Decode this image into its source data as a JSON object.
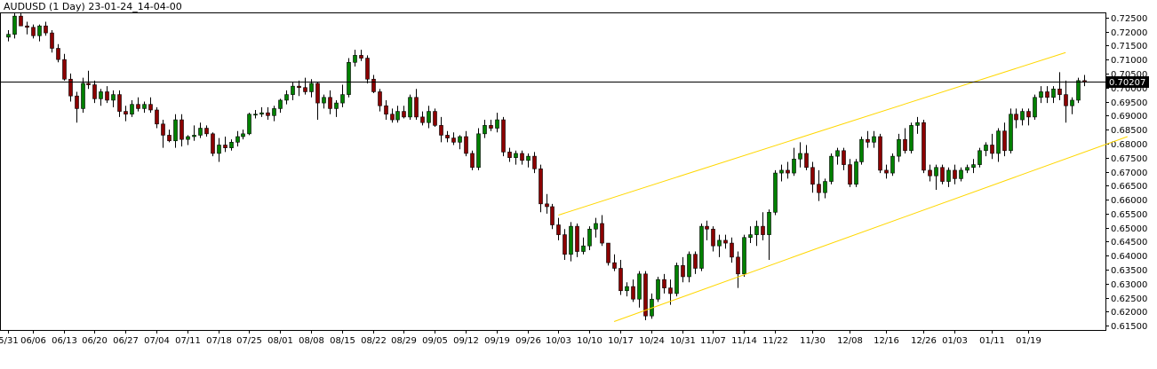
{
  "chart_data": {
    "type": "candlestick",
    "title": "AUDUSD (1 Day) 23-01-24_14-04-00",
    "current_price_label": "0.70207",
    "y_ticks": [
      "0.72500",
      "0.72000",
      "0.71500",
      "0.71000",
      "0.70500",
      "0.70000",
      "0.69500",
      "0.69000",
      "0.68500",
      "0.68000",
      "0.67500",
      "0.67000",
      "0.66500",
      "0.66000",
      "0.65500",
      "0.65000",
      "0.64500",
      "0.64000",
      "0.63500",
      "0.63000",
      "0.62500",
      "0.62000",
      "0.61500"
    ],
    "ylim": [
      0.6135,
      0.7265
    ],
    "x_ticks": [
      {
        "label": "5/31",
        "i": 0
      },
      {
        "label": "06/06",
        "i": 4
      },
      {
        "label": "06/13",
        "i": 9
      },
      {
        "label": "06/20",
        "i": 14
      },
      {
        "label": "06/27",
        "i": 19
      },
      {
        "label": "07/04",
        "i": 24
      },
      {
        "label": "07/11",
        "i": 29
      },
      {
        "label": "07/18",
        "i": 34
      },
      {
        "label": "07/25",
        "i": 39
      },
      {
        "label": "08/01",
        "i": 44
      },
      {
        "label": "08/08",
        "i": 49
      },
      {
        "label": "08/15",
        "i": 54
      },
      {
        "label": "08/22",
        "i": 59
      },
      {
        "label": "08/29",
        "i": 64
      },
      {
        "label": "09/05",
        "i": 69
      },
      {
        "label": "09/12",
        "i": 74
      },
      {
        "label": "09/19",
        "i": 79
      },
      {
        "label": "09/26",
        "i": 84
      },
      {
        "label": "10/03",
        "i": 89
      },
      {
        "label": "10/10",
        "i": 94
      },
      {
        "label": "10/17",
        "i": 99
      },
      {
        "label": "10/24",
        "i": 104
      },
      {
        "label": "10/31",
        "i": 109
      },
      {
        "label": "11/07",
        "i": 114
      },
      {
        "label": "11/14",
        "i": 119
      },
      {
        "label": "11/22",
        "i": 124
      },
      {
        "label": "11/30",
        "i": 130
      },
      {
        "label": "12/08",
        "i": 136
      },
      {
        "label": "12/16",
        "i": 142
      },
      {
        "label": "12/26",
        "i": 148
      },
      {
        "label": "01/03",
        "i": 153
      },
      {
        "label": "01/11",
        "i": 159
      },
      {
        "label": "01/19",
        "i": 165
      }
    ],
    "candles": [
      [
        0.718,
        0.7205,
        0.7165,
        0.719
      ],
      [
        0.719,
        0.727,
        0.7175,
        0.7255
      ],
      [
        0.7255,
        0.7275,
        0.7225,
        0.722
      ],
      [
        0.722,
        0.7235,
        0.719,
        0.7215
      ],
      [
        0.7215,
        0.7225,
        0.7175,
        0.7185
      ],
      [
        0.7185,
        0.7225,
        0.7165,
        0.722
      ],
      [
        0.722,
        0.7235,
        0.7185,
        0.7195
      ],
      [
        0.7195,
        0.7205,
        0.7125,
        0.714
      ],
      [
        0.714,
        0.7155,
        0.709,
        0.71
      ],
      [
        0.71,
        0.712,
        0.7025,
        0.703
      ],
      [
        0.703,
        0.705,
        0.695,
        0.697
      ],
      [
        0.697,
        0.6985,
        0.6875,
        0.6925
      ],
      [
        0.6925,
        0.7035,
        0.691,
        0.7015
      ],
      [
        0.7015,
        0.706,
        0.6995,
        0.701
      ],
      [
        0.701,
        0.7025,
        0.6945,
        0.696
      ],
      [
        0.696,
        0.6995,
        0.6935,
        0.6985
      ],
      [
        0.6985,
        0.7005,
        0.6945,
        0.6955
      ],
      [
        0.6955,
        0.699,
        0.693,
        0.6975
      ],
      [
        0.6975,
        0.699,
        0.6895,
        0.6915
      ],
      [
        0.6915,
        0.6935,
        0.688,
        0.6905
      ],
      [
        0.6905,
        0.6955,
        0.6895,
        0.694
      ],
      [
        0.694,
        0.6965,
        0.6915,
        0.6925
      ],
      [
        0.6925,
        0.695,
        0.691,
        0.694
      ],
      [
        0.694,
        0.6965,
        0.691,
        0.692
      ],
      [
        0.692,
        0.693,
        0.6855,
        0.687
      ],
      [
        0.687,
        0.6885,
        0.6785,
        0.683
      ],
      [
        0.683,
        0.685,
        0.6805,
        0.681
      ],
      [
        0.681,
        0.6905,
        0.6785,
        0.6885
      ],
      [
        0.6885,
        0.6905,
        0.679,
        0.6815
      ],
      [
        0.6815,
        0.683,
        0.6795,
        0.6825
      ],
      [
        0.6825,
        0.6865,
        0.681,
        0.683
      ],
      [
        0.683,
        0.6875,
        0.682,
        0.6855
      ],
      [
        0.6855,
        0.6865,
        0.6825,
        0.6835
      ],
      [
        0.6835,
        0.684,
        0.6755,
        0.6765
      ],
      [
        0.6765,
        0.682,
        0.6735,
        0.6795
      ],
      [
        0.6795,
        0.6825,
        0.677,
        0.6785
      ],
      [
        0.6785,
        0.6815,
        0.6775,
        0.6805
      ],
      [
        0.6805,
        0.6845,
        0.679,
        0.6825
      ],
      [
        0.6825,
        0.685,
        0.6815,
        0.6835
      ],
      [
        0.6835,
        0.691,
        0.683,
        0.6905
      ],
      [
        0.6905,
        0.692,
        0.689,
        0.6905
      ],
      [
        0.6905,
        0.693,
        0.6895,
        0.691
      ],
      [
        0.691,
        0.693,
        0.6885,
        0.69
      ],
      [
        0.69,
        0.6935,
        0.688,
        0.6925
      ],
      [
        0.6925,
        0.696,
        0.691,
        0.6955
      ],
      [
        0.6955,
        0.699,
        0.694,
        0.6975
      ],
      [
        0.6975,
        0.702,
        0.6955,
        0.7005
      ],
      [
        0.7005,
        0.7025,
        0.697,
        0.7
      ],
      [
        0.7,
        0.7035,
        0.6975,
        0.6985
      ],
      [
        0.6985,
        0.703,
        0.6965,
        0.7015
      ],
      [
        0.7015,
        0.702,
        0.6885,
        0.6945
      ],
      [
        0.6945,
        0.6975,
        0.6925,
        0.6965
      ],
      [
        0.6965,
        0.699,
        0.6905,
        0.6925
      ],
      [
        0.6925,
        0.6955,
        0.6895,
        0.6945
      ],
      [
        0.6945,
        0.701,
        0.693,
        0.6975
      ],
      [
        0.6975,
        0.7105,
        0.6965,
        0.709
      ],
      [
        0.709,
        0.7135,
        0.7075,
        0.7115
      ],
      [
        0.7115,
        0.7135,
        0.7095,
        0.7105
      ],
      [
        0.7105,
        0.7115,
        0.7015,
        0.703
      ],
      [
        0.703,
        0.7045,
        0.698,
        0.6985
      ],
      [
        0.6985,
        0.6995,
        0.6915,
        0.6935
      ],
      [
        0.6935,
        0.6955,
        0.6885,
        0.6905
      ],
      [
        0.6905,
        0.6925,
        0.6875,
        0.6885
      ],
      [
        0.6885,
        0.6935,
        0.6875,
        0.6915
      ],
      [
        0.6915,
        0.6935,
        0.689,
        0.6895
      ],
      [
        0.6895,
        0.6975,
        0.6885,
        0.6965
      ],
      [
        0.6965,
        0.6995,
        0.6885,
        0.6895
      ],
      [
        0.6895,
        0.6915,
        0.6865,
        0.6875
      ],
      [
        0.6875,
        0.6935,
        0.6855,
        0.6915
      ],
      [
        0.6915,
        0.6925,
        0.686,
        0.6865
      ],
      [
        0.6865,
        0.6895,
        0.6805,
        0.683
      ],
      [
        0.683,
        0.6845,
        0.6805,
        0.682
      ],
      [
        0.682,
        0.684,
        0.6795,
        0.6805
      ],
      [
        0.6805,
        0.683,
        0.678,
        0.6825
      ],
      [
        0.6825,
        0.6845,
        0.6755,
        0.6765
      ],
      [
        0.6765,
        0.6775,
        0.6705,
        0.6715
      ],
      [
        0.6715,
        0.6855,
        0.6705,
        0.6835
      ],
      [
        0.6835,
        0.6885,
        0.682,
        0.6865
      ],
      [
        0.6865,
        0.6885,
        0.6845,
        0.6855
      ],
      [
        0.6855,
        0.691,
        0.684,
        0.6885
      ],
      [
        0.6885,
        0.6895,
        0.6755,
        0.677
      ],
      [
        0.677,
        0.6785,
        0.6735,
        0.675
      ],
      [
        0.675,
        0.6775,
        0.6725,
        0.6765
      ],
      [
        0.6765,
        0.6775,
        0.6725,
        0.674
      ],
      [
        0.674,
        0.6765,
        0.6715,
        0.6755
      ],
      [
        0.6755,
        0.677,
        0.6695,
        0.671
      ],
      [
        0.671,
        0.6725,
        0.6555,
        0.6585
      ],
      [
        0.6585,
        0.662,
        0.655,
        0.6575
      ],
      [
        0.6575,
        0.6585,
        0.6495,
        0.651
      ],
      [
        0.651,
        0.6535,
        0.6455,
        0.6475
      ],
      [
        0.6475,
        0.6495,
        0.6385,
        0.6405
      ],
      [
        0.6405,
        0.652,
        0.638,
        0.6505
      ],
      [
        0.6505,
        0.6515,
        0.6395,
        0.6415
      ],
      [
        0.6415,
        0.6465,
        0.6405,
        0.6435
      ],
      [
        0.6435,
        0.6505,
        0.642,
        0.6495
      ],
      [
        0.6495,
        0.6535,
        0.6465,
        0.6515
      ],
      [
        0.6515,
        0.6545,
        0.6435,
        0.6445
      ],
      [
        0.6445,
        0.6445,
        0.6365,
        0.6375
      ],
      [
        0.6375,
        0.6405,
        0.6345,
        0.6355
      ],
      [
        0.6355,
        0.6385,
        0.626,
        0.6275
      ],
      [
        0.6275,
        0.6305,
        0.6255,
        0.629
      ],
      [
        0.629,
        0.6315,
        0.6235,
        0.6245
      ],
      [
        0.6245,
        0.6345,
        0.6215,
        0.6335
      ],
      [
        0.6335,
        0.6345,
        0.617,
        0.6185
      ],
      [
        0.6185,
        0.6265,
        0.6175,
        0.6245
      ],
      [
        0.6245,
        0.6325,
        0.6235,
        0.6315
      ],
      [
        0.6315,
        0.6335,
        0.6265,
        0.6285
      ],
      [
        0.6285,
        0.6315,
        0.6225,
        0.6265
      ],
      [
        0.6265,
        0.6375,
        0.6255,
        0.6365
      ],
      [
        0.6365,
        0.6395,
        0.6305,
        0.6325
      ],
      [
        0.6325,
        0.6415,
        0.6305,
        0.6405
      ],
      [
        0.6405,
        0.6415,
        0.6335,
        0.6355
      ],
      [
        0.6355,
        0.6515,
        0.6345,
        0.6505
      ],
      [
        0.6505,
        0.6525,
        0.6455,
        0.6495
      ],
      [
        0.6495,
        0.6505,
        0.6415,
        0.6435
      ],
      [
        0.6435,
        0.6475,
        0.6395,
        0.6455
      ],
      [
        0.6455,
        0.6475,
        0.6425,
        0.6445
      ],
      [
        0.6445,
        0.6465,
        0.6375,
        0.6395
      ],
      [
        0.6395,
        0.6415,
        0.6285,
        0.6335
      ],
      [
        0.6335,
        0.6475,
        0.6325,
        0.6465
      ],
      [
        0.6465,
        0.6505,
        0.6445,
        0.6475
      ],
      [
        0.6475,
        0.6525,
        0.6435,
        0.6505
      ],
      [
        0.6505,
        0.6555,
        0.6455,
        0.6475
      ],
      [
        0.6475,
        0.6565,
        0.6385,
        0.6555
      ],
      [
        0.6555,
        0.6705,
        0.6545,
        0.6695
      ],
      [
        0.6695,
        0.6725,
        0.6665,
        0.6705
      ],
      [
        0.6705,
        0.6735,
        0.6675,
        0.6695
      ],
      [
        0.6695,
        0.6785,
        0.6685,
        0.6745
      ],
      [
        0.6745,
        0.6805,
        0.6715,
        0.6765
      ],
      [
        0.6765,
        0.6795,
        0.6705,
        0.6715
      ],
      [
        0.6715,
        0.6735,
        0.6625,
        0.6655
      ],
      [
        0.6655,
        0.6705,
        0.6595,
        0.6625
      ],
      [
        0.6625,
        0.6675,
        0.6605,
        0.6665
      ],
      [
        0.6665,
        0.6765,
        0.6655,
        0.6755
      ],
      [
        0.6755,
        0.6785,
        0.6725,
        0.6775
      ],
      [
        0.6775,
        0.6785,
        0.6705,
        0.6725
      ],
      [
        0.6725,
        0.6745,
        0.6645,
        0.6655
      ],
      [
        0.6655,
        0.6745,
        0.6645,
        0.6735
      ],
      [
        0.6735,
        0.6825,
        0.6725,
        0.6815
      ],
      [
        0.6815,
        0.6845,
        0.6785,
        0.6805
      ],
      [
        0.6805,
        0.6845,
        0.6785,
        0.6825
      ],
      [
        0.6825,
        0.6835,
        0.6695,
        0.6705
      ],
      [
        0.6705,
        0.6725,
        0.6675,
        0.6695
      ],
      [
        0.6695,
        0.6765,
        0.6685,
        0.6755
      ],
      [
        0.6755,
        0.6835,
        0.6735,
        0.6815
      ],
      [
        0.6815,
        0.6855,
        0.6765,
        0.6775
      ],
      [
        0.6775,
        0.6875,
        0.6765,
        0.6865
      ],
      [
        0.6865,
        0.6895,
        0.6835,
        0.6875
      ],
      [
        0.6875,
        0.6885,
        0.6695,
        0.6705
      ],
      [
        0.6705,
        0.6725,
        0.6665,
        0.6685
      ],
      [
        0.6685,
        0.6725,
        0.6635,
        0.6715
      ],
      [
        0.6715,
        0.6725,
        0.6655,
        0.6665
      ],
      [
        0.6665,
        0.6715,
        0.6645,
        0.6705
      ],
      [
        0.6705,
        0.6725,
        0.6655,
        0.6675
      ],
      [
        0.6675,
        0.6715,
        0.6665,
        0.6705
      ],
      [
        0.6705,
        0.6725,
        0.6695,
        0.6715
      ],
      [
        0.6715,
        0.6745,
        0.6695,
        0.6725
      ],
      [
        0.6725,
        0.6785,
        0.6715,
        0.6775
      ],
      [
        0.6775,
        0.6805,
        0.6755,
        0.6795
      ],
      [
        0.6795,
        0.6835,
        0.6745,
        0.6765
      ],
      [
        0.6765,
        0.6855,
        0.6735,
        0.6845
      ],
      [
        0.6845,
        0.6875,
        0.6755,
        0.6775
      ],
      [
        0.6775,
        0.6925,
        0.6765,
        0.6905
      ],
      [
        0.6905,
        0.6925,
        0.6855,
        0.6885
      ],
      [
        0.6885,
        0.6925,
        0.6865,
        0.6915
      ],
      [
        0.6915,
        0.6925,
        0.6865,
        0.6895
      ],
      [
        0.6895,
        0.6975,
        0.6885,
        0.6965
      ],
      [
        0.6965,
        0.7005,
        0.6945,
        0.6985
      ],
      [
        0.6985,
        0.7005,
        0.6945,
        0.6965
      ],
      [
        0.6965,
        0.7005,
        0.6945,
        0.6995
      ],
      [
        0.6995,
        0.7055,
        0.6955,
        0.6975
      ],
      [
        0.6975,
        0.7025,
        0.6875,
        0.6935
      ],
      [
        0.6935,
        0.6965,
        0.6905,
        0.6955
      ],
      [
        0.6955,
        0.7035,
        0.6945,
        0.7025
      ],
      [
        0.7025,
        0.7045,
        0.7005,
        0.70207
      ]
    ],
    "channel_lines": [
      {
        "from": [
          89,
          0.6545
        ],
        "to": [
          171,
          0.7125
        ]
      },
      {
        "from": [
          98,
          0.6165
        ],
        "to": [
          181,
          0.6825
        ]
      }
    ],
    "colors": {
      "up": "#008000",
      "down": "#8B0000",
      "outline": "#000000",
      "channel": "#FFD700",
      "price_line": "#000000",
      "price_label_bg": "#000000",
      "price_label_fg": "#ffffff"
    }
  }
}
